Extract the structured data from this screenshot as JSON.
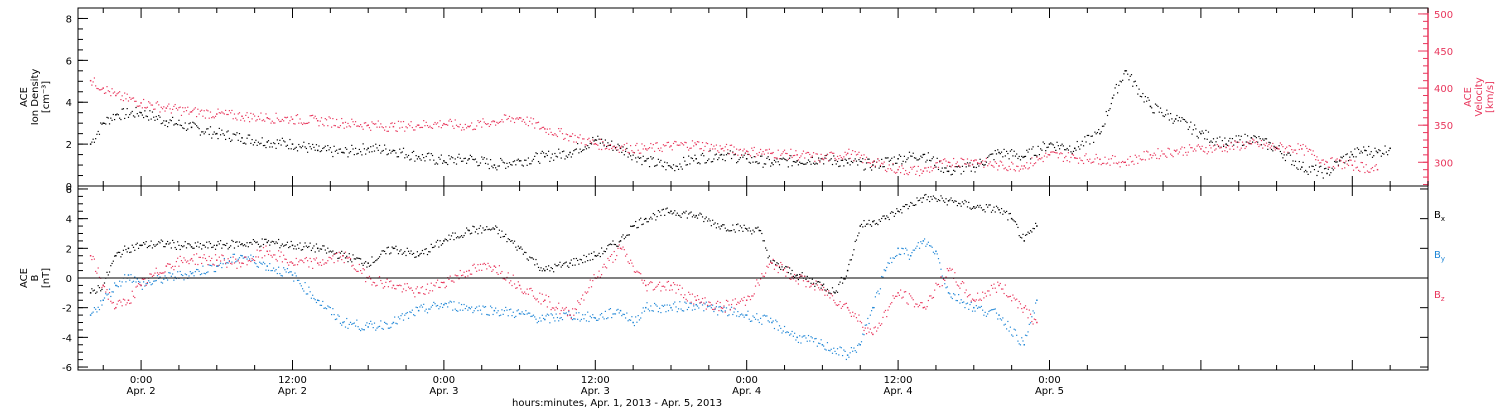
{
  "footer_label": "hours:minutes, Apr. 1, 2013 - Apr. 5, 2013",
  "colors": {
    "black": "#000000",
    "red": "#e8365c",
    "blue": "#1f86d6"
  },
  "chart_data": [
    {
      "panel": "top",
      "type": "scatter",
      "ylabel_left": [
        "ACE",
        "Ion Density",
        "[cm⁻³]"
      ],
      "ylabel_right": [
        "ACE",
        "Velocity",
        "[km/s]"
      ],
      "left_ylim": [
        0,
        8.5
      ],
      "left_ticks": [
        0,
        2,
        4,
        6,
        8
      ],
      "right_ylim": [
        268,
        508
      ],
      "right_ticks": [
        300,
        350,
        400,
        450,
        500
      ],
      "xlim_hours": [
        19,
        126
      ],
      "series": [
        {
          "color": "black",
          "axis": "left",
          "points": [
            [
              20,
              2.0
            ],
            [
              21,
              3.0
            ],
            [
              22,
              3.4
            ],
            [
              24,
              3.5
            ],
            [
              26,
              3.1
            ],
            [
              28,
              2.8
            ],
            [
              30,
              2.5
            ],
            [
              32,
              2.3
            ],
            [
              34,
              2.1
            ],
            [
              36,
              2.0
            ],
            [
              38,
              1.7
            ],
            [
              40,
              1.6
            ],
            [
              42,
              1.8
            ],
            [
              44,
              1.7
            ],
            [
              46,
              1.4
            ],
            [
              48,
              1.2
            ],
            [
              50,
              1.3
            ],
            [
              52,
              1.0
            ],
            [
              54,
              1.2
            ],
            [
              56,
              1.4
            ],
            [
              58,
              1.6
            ],
            [
              60,
              2.2
            ],
            [
              62,
              1.8
            ],
            [
              64,
              1.2
            ],
            [
              66,
              0.9
            ],
            [
              68,
              1.3
            ],
            [
              70,
              1.5
            ],
            [
              72,
              1.3
            ],
            [
              74,
              1.1
            ],
            [
              76,
              1.2
            ],
            [
              78,
              1.3
            ],
            [
              80,
              1.1
            ],
            [
              82,
              1.0
            ],
            [
              84,
              1.3
            ],
            [
              86,
              1.5
            ],
            [
              88,
              0.7
            ],
            [
              90,
              0.9
            ],
            [
              92,
              1.6
            ],
            [
              94,
              1.4
            ],
            [
              96,
              2.0
            ],
            [
              98,
              1.8
            ],
            [
              100,
              2.5
            ],
            [
              101,
              4.2
            ],
            [
              102,
              5.5
            ],
            [
              104,
              3.8
            ],
            [
              106,
              3.2
            ],
            [
              108,
              2.5
            ],
            [
              110,
              2.0
            ],
            [
              112,
              2.3
            ],
            [
              114,
              1.8
            ],
            [
              116,
              0.9
            ],
            [
              118,
              0.6
            ],
            [
              119,
              1.2
            ],
            [
              120,
              1.5
            ],
            [
              121,
              1.7
            ],
            [
              122,
              1.6
            ],
            [
              123,
              1.8
            ]
          ]
        },
        {
          "color": "red",
          "axis": "right",
          "points": [
            [
              20,
              410
            ],
            [
              21,
              400
            ],
            [
              22,
              390
            ],
            [
              24,
              380
            ],
            [
              26,
              373
            ],
            [
              28,
              368
            ],
            [
              30,
              365
            ],
            [
              32,
              362
            ],
            [
              34,
              360
            ],
            [
              36,
              358
            ],
            [
              38,
              356
            ],
            [
              40,
              353
            ],
            [
              42,
              350
            ],
            [
              44,
              348
            ],
            [
              46,
              350
            ],
            [
              48,
              352
            ],
            [
              50,
              348
            ],
            [
              52,
              355
            ],
            [
              54,
              360
            ],
            [
              56,
              345
            ],
            [
              58,
              335
            ],
            [
              60,
              325
            ],
            [
              62,
              320
            ],
            [
              64,
              318
            ],
            [
              66,
              322
            ],
            [
              68,
              324
            ],
            [
              70,
              318
            ],
            [
              72,
              315
            ],
            [
              74,
              312
            ],
            [
              76,
              310
            ],
            [
              78,
              305
            ],
            [
              80,
              312
            ],
            [
              82,
              300
            ],
            [
              84,
              290
            ],
            [
              86,
              288
            ],
            [
              88,
              300
            ],
            [
              90,
              302
            ],
            [
              92,
              295
            ],
            [
              94,
              295
            ],
            [
              96,
              310
            ],
            [
              98,
              306
            ],
            [
              100,
              304
            ],
            [
              102,
              300
            ],
            [
              104,
              310
            ],
            [
              106,
              315
            ],
            [
              108,
              318
            ],
            [
              110,
              320
            ],
            [
              112,
              325
            ],
            [
              114,
              320
            ],
            [
              116,
              318
            ],
            [
              118,
              300
            ],
            [
              120,
              296
            ],
            [
              122,
              290
            ]
          ]
        }
      ]
    },
    {
      "panel": "bottom",
      "type": "scatter",
      "ylabel_left": [
        "ACE",
        "B",
        "[nT]"
      ],
      "ylim": [
        -6.2,
        6.2
      ],
      "ticks": [
        -6,
        -4,
        -2,
        0,
        2,
        4,
        6
      ],
      "xlim_hours": [
        19,
        126
      ],
      "x_ticks": [
        {
          "hour": 24,
          "time": "0:00",
          "date": "Apr. 2"
        },
        {
          "hour": 36,
          "time": "12:00",
          "date": "Apr. 2"
        },
        {
          "hour": 48,
          "time": "0:00",
          "date": "Apr. 3"
        },
        {
          "hour": 60,
          "time": "12:00",
          "date": "Apr. 3"
        },
        {
          "hour": 72,
          "time": "0:00",
          "date": "Apr. 4"
        },
        {
          "hour": 84,
          "time": "12:00",
          "date": "Apr. 4"
        },
        {
          "hour": 96,
          "time": "0:00",
          "date": "Apr. 5"
        }
      ],
      "series": [
        {
          "name": "B",
          "subscript": "x",
          "color": "black",
          "points": [
            [
              20,
              -1.0
            ],
            [
              21,
              -0.5
            ],
            [
              22,
              1.5
            ],
            [
              23,
              2.0
            ],
            [
              24,
              2.2
            ],
            [
              26,
              2.3
            ],
            [
              28,
              2.1
            ],
            [
              30,
              2.2
            ],
            [
              32,
              2.3
            ],
            [
              34,
              2.4
            ],
            [
              36,
              2.2
            ],
            [
              38,
              2.0
            ],
            [
              40,
              1.5
            ],
            [
              42,
              1.0
            ],
            [
              44,
              2.0
            ],
            [
              46,
              1.5
            ],
            [
              48,
              2.5
            ],
            [
              50,
              3.2
            ],
            [
              52,
              3.3
            ],
            [
              54,
              2.0
            ],
            [
              56,
              0.5
            ],
            [
              58,
              1.0
            ],
            [
              60,
              1.5
            ],
            [
              62,
              2.5
            ],
            [
              63,
              3.5
            ],
            [
              64,
              4.0
            ],
            [
              66,
              4.5
            ],
            [
              68,
              4.2
            ],
            [
              70,
              3.5
            ],
            [
              72,
              3.3
            ],
            [
              73,
              3.2
            ],
            [
              74,
              1.0
            ],
            [
              76,
              0.2
            ],
            [
              78,
              -0.5
            ],
            [
              79,
              -1.0
            ],
            [
              80,
              0.5
            ],
            [
              81,
              3.5
            ],
            [
              82,
              3.8
            ],
            [
              83,
              4.0
            ],
            [
              84,
              4.5
            ],
            [
              86,
              5.4
            ],
            [
              88,
              5.2
            ],
            [
              90,
              4.8
            ],
            [
              92,
              4.6
            ],
            [
              93,
              4.0
            ],
            [
              94,
              2.5
            ],
            [
              95,
              3.5
            ]
          ]
        },
        {
          "name": "B",
          "subscript": "y",
          "color": "blue",
          "points": [
            [
              20,
              -2.5
            ],
            [
              21,
              -1.5
            ],
            [
              22,
              -0.5
            ],
            [
              23,
              0.2
            ],
            [
              24,
              -0.5
            ],
            [
              26,
              0.0
            ],
            [
              28,
              0.3
            ],
            [
              30,
              0.8
            ],
            [
              32,
              1.5
            ],
            [
              34,
              0.8
            ],
            [
              36,
              0.2
            ],
            [
              38,
              -1.5
            ],
            [
              40,
              -3.0
            ],
            [
              42,
              -3.3
            ],
            [
              44,
              -3.0
            ],
            [
              46,
              -2.2
            ],
            [
              48,
              -1.8
            ],
            [
              50,
              -2.0
            ],
            [
              52,
              -2.2
            ],
            [
              54,
              -2.4
            ],
            [
              56,
              -2.8
            ],
            [
              58,
              -2.5
            ],
            [
              60,
              -2.7
            ],
            [
              62,
              -2.2
            ],
            [
              63,
              -3.0
            ],
            [
              64,
              -2.0
            ],
            [
              66,
              -2.0
            ],
            [
              68,
              -1.8
            ],
            [
              70,
              -2.2
            ],
            [
              72,
              -2.5
            ],
            [
              74,
              -3.0
            ],
            [
              76,
              -4.0
            ],
            [
              78,
              -4.5
            ],
            [
              80,
              -5.2
            ],
            [
              81,
              -4.5
            ],
            [
              82,
              -2.0
            ],
            [
              83,
              0.5
            ],
            [
              84,
              2.0
            ],
            [
              85,
              1.5
            ],
            [
              86,
              2.5
            ],
            [
              87,
              1.8
            ],
            [
              88,
              -1.0
            ],
            [
              90,
              -2.0
            ],
            [
              92,
              -2.5
            ],
            [
              94,
              -4.5
            ],
            [
              95,
              -1.5
            ]
          ]
        },
        {
          "name": "B",
          "subscript": "z",
          "color": "red",
          "points": [
            [
              20,
              1.5
            ],
            [
              21,
              -0.5
            ],
            [
              22,
              -2.0
            ],
            [
              23,
              -1.5
            ],
            [
              24,
              -0.5
            ],
            [
              26,
              0.8
            ],
            [
              28,
              1.3
            ],
            [
              30,
              1.2
            ],
            [
              32,
              1.0
            ],
            [
              34,
              1.8
            ],
            [
              36,
              1.0
            ],
            [
              38,
              1.0
            ],
            [
              40,
              1.5
            ],
            [
              42,
              0.0
            ],
            [
              44,
              -0.5
            ],
            [
              46,
              -1.0
            ],
            [
              48,
              -0.3
            ],
            [
              50,
              0.5
            ],
            [
              52,
              0.8
            ],
            [
              54,
              -0.5
            ],
            [
              56,
              -1.5
            ],
            [
              58,
              -2.5
            ],
            [
              60,
              0.0
            ],
            [
              62,
              2.0
            ],
            [
              64,
              -0.5
            ],
            [
              66,
              -0.5
            ],
            [
              68,
              -1.5
            ],
            [
              70,
              -2.0
            ],
            [
              72,
              -1.5
            ],
            [
              74,
              1.0
            ],
            [
              76,
              0.0
            ],
            [
              78,
              -0.8
            ],
            [
              80,
              -2.0
            ],
            [
              82,
              -3.8
            ],
            [
              84,
              -1.0
            ],
            [
              86,
              -2.0
            ],
            [
              88,
              0.5
            ],
            [
              90,
              -1.5
            ],
            [
              92,
              -0.5
            ],
            [
              94,
              -2.0
            ],
            [
              95,
              -3.0
            ]
          ]
        }
      ]
    }
  ]
}
